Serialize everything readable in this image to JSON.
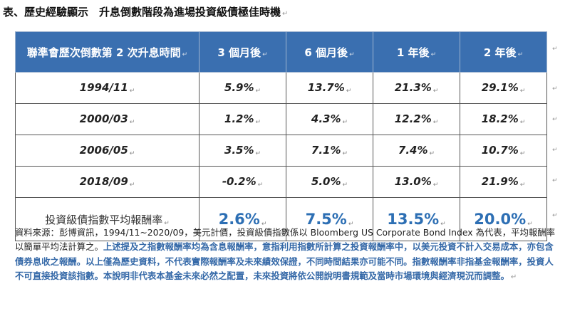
{
  "title": "表、歷史經驗顯示　升息倒數階段為進場投資級債極佳時機",
  "table": {
    "headers": [
      "聯準會歷次倒數第 2 次升息時間",
      "3 個月後",
      "6 個月後",
      "1 年後",
      "2 年後"
    ],
    "rows": [
      {
        "date": "1994/11",
        "values": [
          "5.9%",
          "13.7%",
          "21.3%",
          "29.1%"
        ]
      },
      {
        "date": "2000/03",
        "values": [
          "1.2%",
          "4.3%",
          "12.2%",
          "18.2%"
        ]
      },
      {
        "date": "2006/05",
        "values": [
          "3.5%",
          "7.1%",
          "7.4%",
          "10.7%"
        ]
      },
      {
        "date": "2018/09",
        "values": [
          "-0.2%",
          "5.0%",
          "13.0%",
          "21.9%"
        ]
      }
    ],
    "average": {
      "label": "投資級債指數平均報酬率",
      "values": [
        "2.6%",
        "7.5%",
        "13.5%",
        "20.0%"
      ]
    }
  },
  "note": {
    "plain": "資料來源：彭博資訊，1994/11~2020/09，美元計價，投資級債指數係以 Bloomberg US Corporate Bond Index 為代表，平均報酬率以簡單平均法計算之。",
    "highlight": "上述提及之指數報酬率均為含息報酬率，意指利用指數所計算之投資報酬率中，以美元投資不計入交易成本，亦包含債券息收之報酬。以上僅為歷史資料，不代表實際報酬率及未來績效保證，不同時間結果亦可能不同。指數報酬率非指基金報酬率，投資人不可直接投資該指數。本說明非代表本基金未來必然之配置，未來投資將依公開說明書規範及當時市場環境與經濟現況而調整。"
  }
}
